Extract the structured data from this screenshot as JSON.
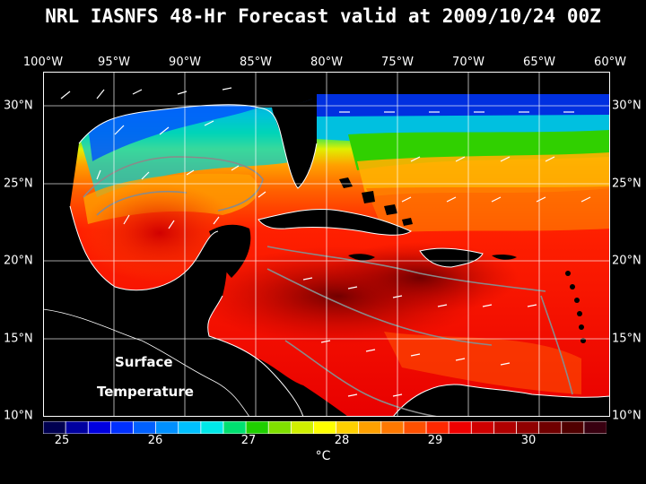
{
  "title": "NRL IASNFS  48-Hr Forecast valid at 2009/10/24 00Z",
  "map_labels": {
    "line1": "Surface",
    "line2": "Temperature"
  },
  "lon_labels": [
    "100°W",
    "95°W",
    "90°W",
    "85°W",
    "80°W",
    "75°W",
    "70°W",
    "65°W",
    "60°W"
  ],
  "lat_labels": [
    "30°N",
    "25°N",
    "20°N",
    "15°N",
    "10°N"
  ],
  "colorbar": {
    "ticks": [
      "25",
      "26",
      "27",
      "28",
      "29",
      "30"
    ],
    "unit": "°C",
    "colors": [
      "#000050",
      "#0000a0",
      "#0000e0",
      "#0030ff",
      "#0060ff",
      "#0090ff",
      "#00c0ff",
      "#00e8e8",
      "#00e070",
      "#20d000",
      "#80e000",
      "#d0f000",
      "#ffff00",
      "#ffd000",
      "#ffa000",
      "#ff7800",
      "#ff5000",
      "#ff2800",
      "#f00000",
      "#d00000",
      "#b00000",
      "#900000",
      "#700000",
      "#500000",
      "#380010"
    ]
  },
  "chart_data": {
    "type": "heatmap",
    "title": "NRL IASNFS  48-Hr Forecast valid at 2009/10/24 00Z",
    "variable": "Surface Temperature",
    "unit": "°C",
    "x_range": [
      -100,
      -60
    ],
    "y_range": [
      10,
      31
    ],
    "color_range": [
      24.75,
      30.8
    ]
  }
}
